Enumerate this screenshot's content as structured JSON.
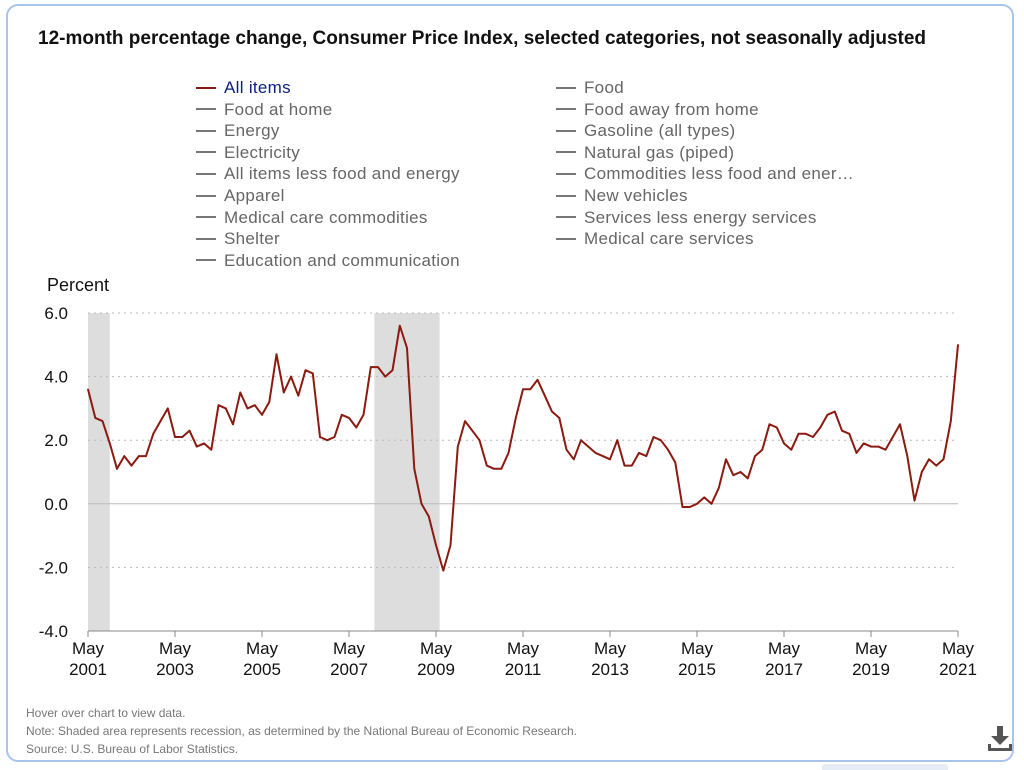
{
  "title": "12-month percentage change, Consumer Price Index, selected categories, not seasonally adjusted",
  "legend": {
    "left": [
      "All items",
      "Food at home",
      "Energy",
      "Electricity",
      "All items less food and energy",
      "Apparel",
      "Medical care commodities",
      "Shelter",
      "Education and communication"
    ],
    "right": [
      "Food",
      "Food away from home",
      "Gasoline (all types)",
      "Natural gas (piped)",
      "Commodities less food and ener…",
      "New vehicles",
      "Services less energy services",
      "Medical care services"
    ],
    "active": "All items"
  },
  "colors": {
    "active_series": "#8b1a10",
    "inactive_series": "#777777",
    "recession": "#dddddd",
    "gridline": "#bbbbbb",
    "frame": "#a9c4ec"
  },
  "footer": {
    "hover": "Hover over chart to view data.",
    "note": "Note: Shaded area represents recession, as determined by the National Bureau of Economic Research.",
    "source": "Source: U.S. Bureau of Labor Statistics."
  },
  "download_icon": "download-icon",
  "chart_data": {
    "type": "line",
    "ylabel": "Percent",
    "ylim": [
      -4.0,
      6.0
    ],
    "yticks": [
      "6.0",
      "4.0",
      "2.0",
      "0.0",
      "-2.0",
      "-4.0"
    ],
    "xticks": [
      {
        "month": "May",
        "year": "2001"
      },
      {
        "month": "May",
        "year": "2003"
      },
      {
        "month": "May",
        "year": "2005"
      },
      {
        "month": "May",
        "year": "2007"
      },
      {
        "month": "May",
        "year": "2009"
      },
      {
        "month": "May",
        "year": "2011"
      },
      {
        "month": "May",
        "year": "2013"
      },
      {
        "month": "May",
        "year": "2015"
      },
      {
        "month": "May",
        "year": "2017"
      },
      {
        "month": "May",
        "year": "2019"
      },
      {
        "month": "May",
        "year": "2021"
      }
    ],
    "grid": "horizontal dotted",
    "recessions": [
      {
        "start": "2001-03",
        "end": "2001-11"
      },
      {
        "start": "2007-12",
        "end": "2009-06"
      }
    ],
    "series": [
      {
        "name": "All items",
        "x": [
          "2001-05",
          "2001-07",
          "2001-09",
          "2001-11",
          "2002-01",
          "2002-03",
          "2002-05",
          "2002-07",
          "2002-09",
          "2002-11",
          "2003-01",
          "2003-03",
          "2003-05",
          "2003-07",
          "2003-09",
          "2003-11",
          "2004-01",
          "2004-03",
          "2004-05",
          "2004-07",
          "2004-09",
          "2004-11",
          "2005-01",
          "2005-03",
          "2005-05",
          "2005-07",
          "2005-09",
          "2005-11",
          "2006-01",
          "2006-03",
          "2006-05",
          "2006-07",
          "2006-09",
          "2006-11",
          "2007-01",
          "2007-03",
          "2007-05",
          "2007-07",
          "2007-09",
          "2007-11",
          "2008-01",
          "2008-03",
          "2008-05",
          "2008-07",
          "2008-09",
          "2008-11",
          "2009-01",
          "2009-03",
          "2009-05",
          "2009-07",
          "2009-09",
          "2009-11",
          "2010-01",
          "2010-03",
          "2010-05",
          "2010-07",
          "2010-09",
          "2010-11",
          "2011-01",
          "2011-03",
          "2011-05",
          "2011-07",
          "2011-09",
          "2011-11",
          "2012-01",
          "2012-03",
          "2012-05",
          "2012-07",
          "2012-09",
          "2012-11",
          "2013-01",
          "2013-03",
          "2013-05",
          "2013-07",
          "2013-09",
          "2013-11",
          "2014-01",
          "2014-03",
          "2014-05",
          "2014-07",
          "2014-09",
          "2014-11",
          "2015-01",
          "2015-03",
          "2015-05",
          "2015-07",
          "2015-09",
          "2015-11",
          "2016-01",
          "2016-03",
          "2016-05",
          "2016-07",
          "2016-09",
          "2016-11",
          "2017-01",
          "2017-03",
          "2017-05",
          "2017-07",
          "2017-09",
          "2017-11",
          "2018-01",
          "2018-03",
          "2018-05",
          "2018-07",
          "2018-09",
          "2018-11",
          "2019-01",
          "2019-03",
          "2019-05",
          "2019-07",
          "2019-09",
          "2019-11",
          "2020-01",
          "2020-03",
          "2020-05",
          "2020-07",
          "2020-09",
          "2020-11",
          "2021-01",
          "2021-03",
          "2021-05"
        ],
        "values": [
          3.6,
          2.7,
          2.6,
          1.9,
          1.1,
          1.5,
          1.2,
          1.5,
          1.5,
          2.2,
          2.6,
          3.0,
          2.1,
          2.1,
          2.3,
          1.8,
          1.9,
          1.7,
          3.1,
          3.0,
          2.5,
          3.5,
          3.0,
          3.1,
          2.8,
          3.2,
          4.7,
          3.5,
          4.0,
          3.4,
          4.2,
          4.1,
          2.1,
          2.0,
          2.1,
          2.8,
          2.7,
          2.4,
          2.8,
          4.3,
          4.3,
          4.0,
          4.2,
          5.6,
          4.9,
          1.1,
          0.0,
          -0.4,
          -1.3,
          -2.1,
          -1.3,
          1.8,
          2.6,
          2.3,
          2.0,
          1.2,
          1.1,
          1.1,
          1.6,
          2.7,
          3.6,
          3.6,
          3.9,
          3.4,
          2.9,
          2.7,
          1.7,
          1.4,
          2.0,
          1.8,
          1.6,
          1.5,
          1.4,
          2.0,
          1.2,
          1.2,
          1.6,
          1.5,
          2.1,
          2.0,
          1.7,
          1.3,
          -0.1,
          -0.1,
          0.0,
          0.2,
          0.0,
          0.5,
          1.4,
          0.9,
          1.0,
          0.8,
          1.5,
          1.7,
          2.5,
          2.4,
          1.9,
          1.7,
          2.2,
          2.2,
          2.1,
          2.4,
          2.8,
          2.9,
          2.3,
          2.2,
          1.6,
          1.9,
          1.8,
          1.8,
          1.7,
          2.1,
          2.5,
          1.5,
          0.1,
          1.0,
          1.4,
          1.2,
          1.4,
          2.6,
          5.0
        ]
      }
    ]
  }
}
